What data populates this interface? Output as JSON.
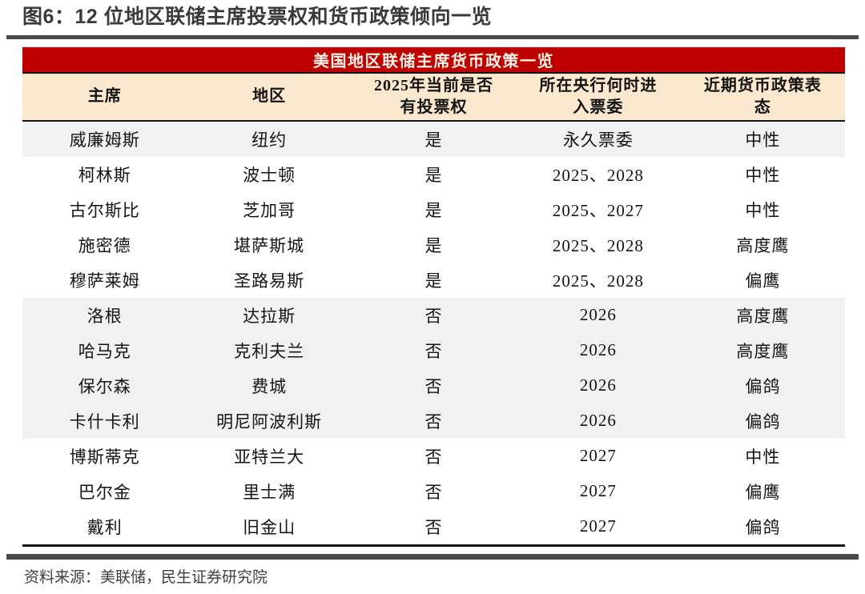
{
  "figure": {
    "title": "图6：12 位地区联储主席投票权和货币政策倾向一览",
    "source": "资料来源：美联储，民生证券研究院"
  },
  "colors": {
    "accent": "#c00000",
    "cream": "#fbe8ce",
    "rowgray": "#f1f1f1"
  },
  "table": {
    "banner": "美国地区联储主席货币政策一览",
    "columns": [
      {
        "lines": [
          "主席"
        ]
      },
      {
        "lines": [
          "地区"
        ]
      },
      {
        "lines": [
          "2025年当前是否",
          "有投票权"
        ]
      },
      {
        "lines": [
          "所在央行何时进",
          "入票委"
        ]
      },
      {
        "lines": [
          "近期货币政策表",
          "态"
        ]
      }
    ],
    "rows": [
      {
        "president": "威廉姆斯",
        "region": "纽约",
        "has_vote_2025": "是",
        "committee_entry": "永久票委",
        "stance": "中性",
        "shaded": true
      },
      {
        "president": "柯林斯",
        "region": "波士顿",
        "has_vote_2025": "是",
        "committee_entry": "2025、2028",
        "stance": "中性",
        "shaded": false
      },
      {
        "president": "古尔斯比",
        "region": "芝加哥",
        "has_vote_2025": "是",
        "committee_entry": "2025、2027",
        "stance": "中性",
        "shaded": false
      },
      {
        "president": "施密德",
        "region": "堪萨斯城",
        "has_vote_2025": "是",
        "committee_entry": "2025、2028",
        "stance": "高度鹰",
        "shaded": false
      },
      {
        "president": "穆萨莱姆",
        "region": "圣路易斯",
        "has_vote_2025": "是",
        "committee_entry": "2025、2028",
        "stance": "偏鹰",
        "shaded": false
      },
      {
        "president": "洛根",
        "region": "达拉斯",
        "has_vote_2025": "否",
        "committee_entry": "2026",
        "stance": "高度鹰",
        "shaded": true
      },
      {
        "president": "哈马克",
        "region": "克利夫兰",
        "has_vote_2025": "否",
        "committee_entry": "2026",
        "stance": "高度鹰",
        "shaded": true
      },
      {
        "president": "保尔森",
        "region": "费城",
        "has_vote_2025": "否",
        "committee_entry": "2026",
        "stance": "偏鸽",
        "shaded": true
      },
      {
        "president": "卡什卡利",
        "region": "明尼阿波利斯",
        "has_vote_2025": "否",
        "committee_entry": "2026",
        "stance": "偏鸽",
        "shaded": true
      },
      {
        "president": "博斯蒂克",
        "region": "亚特兰大",
        "has_vote_2025": "否",
        "committee_entry": "2027",
        "stance": "中性",
        "shaded": false
      },
      {
        "president": "巴尔金",
        "region": "里士满",
        "has_vote_2025": "否",
        "committee_entry": "2027",
        "stance": "偏鹰",
        "shaded": false
      },
      {
        "president": "戴利",
        "region": "旧金山",
        "has_vote_2025": "否",
        "committee_entry": "2027",
        "stance": "偏鸽",
        "shaded": false
      }
    ]
  }
}
